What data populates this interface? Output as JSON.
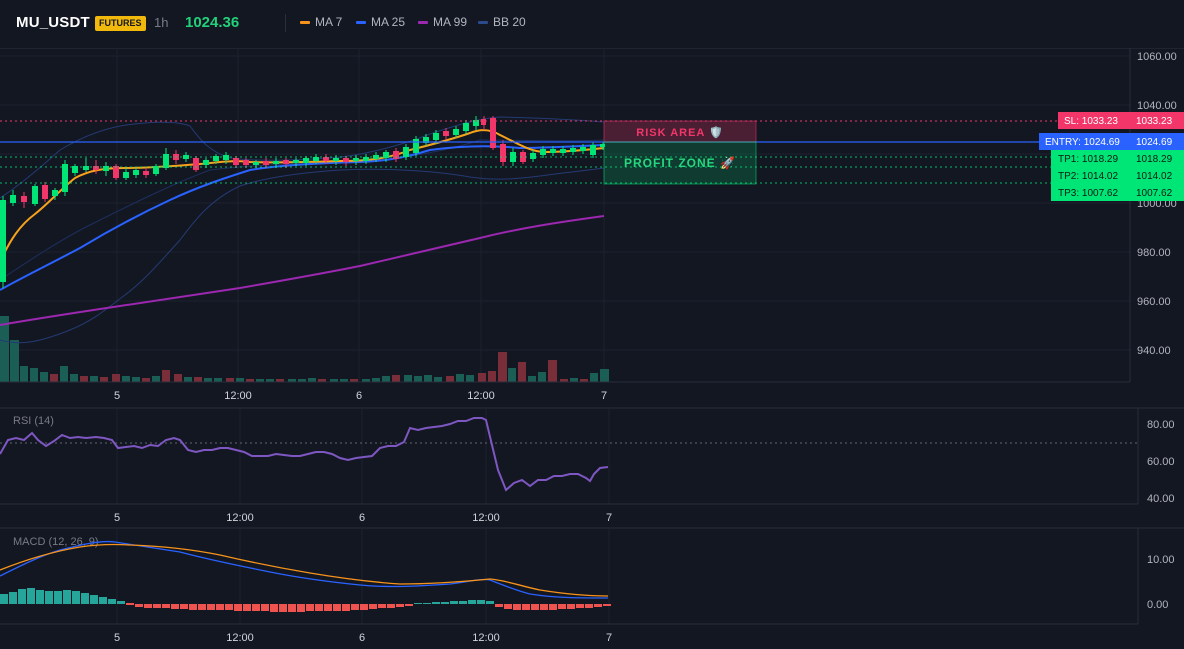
{
  "header": {
    "symbol": "MU_USDT",
    "badge": "FUTURES",
    "timeframe": "1h",
    "price": "1024.36",
    "legend": [
      {
        "label": "MA 7",
        "color": "#f7931a"
      },
      {
        "label": "MA 25",
        "color": "#2962ff"
      },
      {
        "label": "MA 99",
        "color": "#9c27b0"
      },
      {
        "label": "BB 20",
        "color": "#2a4a8c"
      }
    ]
  },
  "price_axis": [
    "1060.00",
    "1040.00",
    "1020.00",
    "1000.00",
    "980.00",
    "960.00",
    "940.00"
  ],
  "rsi_axis": [
    "80.00",
    "60.00",
    "40.00"
  ],
  "macd_axis": [
    "10.00",
    "0.00"
  ],
  "time_axis": [
    "5",
    "12:00",
    "6",
    "12:00",
    "7"
  ],
  "levels": {
    "sl": {
      "label": "SL: 1033.23",
      "value": "1033.23",
      "color": "#f23669"
    },
    "entry": {
      "label": "ENTRY: 1024.69",
      "value": "1024.69",
      "color": "#2962ff"
    },
    "tp1": {
      "label": "TP1: 1018.29",
      "value": "1018.29",
      "color": "#00e676"
    },
    "tp2": {
      "label": "TP2: 1014.02",
      "value": "1014.02",
      "color": "#00e676"
    },
    "tp3": {
      "label": "TP3: 1007.62",
      "value": "1007.62",
      "color": "#00e676"
    }
  },
  "zones": {
    "risk": "RISK AREA 🛡️",
    "profit": "PROFIT ZONE 🚀"
  },
  "panels": {
    "rsi_title": "RSI (14)",
    "macd_title": "MACD (12, 26, 9)"
  },
  "chart_data": {
    "type": "line",
    "price_ylim": [
      930,
      1065
    ],
    "ma7": [
      970,
      980,
      988,
      994,
      998,
      1004,
      1010,
      1013,
      1015,
      1016,
      1016,
      1016,
      1016,
      1017,
      1017,
      1018,
      1018,
      1019,
      1020,
      1020,
      1021,
      1022,
      1021,
      1020,
      1019,
      1019,
      1018,
      1018,
      1017,
      1017,
      1017,
      1017,
      1017,
      1017,
      1017,
      1017,
      1018,
      1018,
      1018,
      1019,
      1019,
      1020,
      1021,
      1022,
      1024,
      1025,
      1027,
      1028,
      1029,
      1031,
      1032,
      1031,
      1028,
      1025,
      1022,
      1021,
      1020,
      1021,
      1021,
      1022
    ],
    "ma25": [
      940,
      945,
      950,
      955,
      960,
      965,
      970,
      975,
      980,
      985,
      990,
      995,
      1000,
      1005,
      1009,
      1012,
      1015,
      1017,
      1019,
      1020,
      1021,
      1021,
      1022,
      1022,
      1022,
      1022,
      1022,
      1022,
      1023,
      1023
    ],
    "ma99": [
      920,
      925,
      930,
      935,
      940,
      945,
      950,
      955,
      960,
      965,
      970,
      975,
      980,
      985,
      990,
      995
    ],
    "rsi": [
      65,
      70,
      72,
      73,
      69,
      74,
      71,
      72,
      72,
      70,
      67,
      68,
      69,
      70,
      71,
      72,
      70,
      66,
      65,
      66,
      67,
      66,
      64,
      63,
      63,
      64,
      63,
      64,
      65,
      64,
      63,
      62,
      62,
      63,
      64,
      68,
      72,
      76,
      78,
      80,
      82,
      84,
      82,
      80,
      75,
      60,
      45,
      48,
      50,
      52,
      54,
      55,
      52,
      50,
      53,
      56
    ],
    "rsi_ylim": [
      35,
      88
    ],
    "macd_ylim": [
      -3,
      16
    ]
  }
}
